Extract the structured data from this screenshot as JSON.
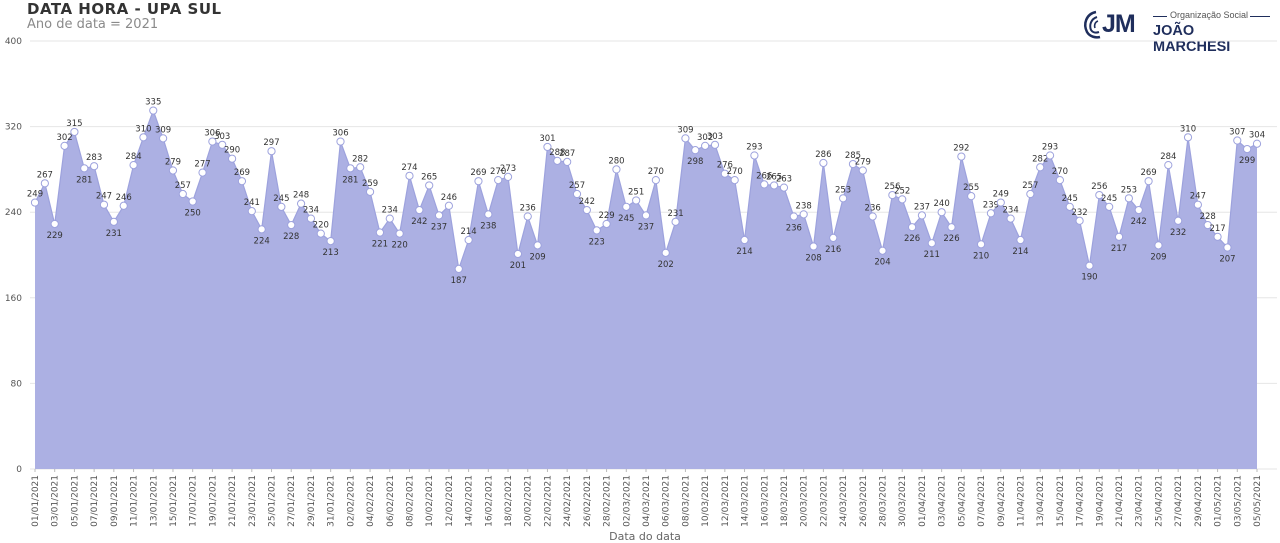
{
  "title": "DATA HORA - UPA SUL",
  "subtitle": "Ano de data = 2021",
  "logo": {
    "tagline": "Organização Social",
    "initials": "JM",
    "name": "JOÃO MARCHESI"
  },
  "colors": {
    "area": "#acb0e3",
    "line": "#9da2dd",
    "grid": "#e6e6e6",
    "marker_stroke": "#9da2dd",
    "text": "#555555"
  },
  "chart_data": {
    "type": "area",
    "xlabel": "Data do data",
    "ylabel": "",
    "ylim": [
      0,
      400
    ],
    "yticks": [
      0,
      80,
      160,
      240,
      320,
      400
    ],
    "start_date": "01/01/2021",
    "end_date": "05/05/2021",
    "x_tick_labels": [
      "01/01/2021",
      "03/01/2021",
      "05/01/2021",
      "07/01/2021",
      "09/01/2021",
      "11/01/2021",
      "13/01/2021",
      "15/01/2021",
      "17/01/2021",
      "19/01/2021",
      "21/01/2021",
      "23/01/2021",
      "25/01/2021",
      "27/01/2021",
      "29/01/2021",
      "31/01/2021",
      "02/02/2021",
      "04/02/2021",
      "06/02/2021",
      "08/02/2021",
      "10/02/2021",
      "12/02/2021",
      "14/02/2021",
      "16/02/2021",
      "18/02/2021",
      "20/02/2021",
      "22/02/2021",
      "24/02/2021",
      "26/02/2021",
      "28/02/2021",
      "02/03/2021",
      "04/03/2021",
      "06/03/2021",
      "08/03/2021",
      "10/03/2021",
      "12/03/2021",
      "14/03/2021",
      "16/03/2021",
      "18/03/2021",
      "20/03/2021",
      "22/03/2021",
      "24/03/2021",
      "26/03/2021",
      "28/03/2021",
      "30/03/2021",
      "01/04/2021",
      "03/04/2021",
      "05/04/2021",
      "07/04/2021",
      "09/04/2021",
      "11/04/2021",
      "13/04/2021",
      "15/04/2021",
      "17/04/2021",
      "19/04/2021",
      "21/04/2021",
      "23/04/2021",
      "25/04/2021",
      "27/04/2021",
      "29/04/2021",
      "01/05/2021",
      "03/05/2021",
      "05/05/2021"
    ],
    "values": [
      249,
      267,
      229,
      302,
      315,
      281,
      283,
      247,
      231,
      246,
      284,
      310,
      335,
      309,
      279,
      257,
      250,
      277,
      306,
      303,
      290,
      269,
      241,
      224,
      297,
      245,
      228,
      248,
      234,
      220,
      213,
      306,
      281,
      282,
      259,
      221,
      234,
      220,
      274,
      242,
      265,
      237,
      246,
      187,
      214,
      269,
      238,
      270,
      273,
      201,
      236,
      209,
      301,
      288,
      287,
      257,
      242,
      223,
      229,
      280,
      245,
      251,
      237,
      270,
      202,
      231,
      309,
      298,
      302,
      303,
      276,
      270,
      214,
      293,
      266,
      265,
      263,
      236,
      238,
      208,
      286,
      216,
      253,
      285,
      279,
      236,
      204,
      256,
      252,
      226,
      237,
      211,
      240,
      226,
      292,
      255,
      210,
      239,
      249,
      234,
      214,
      257,
      282,
      293,
      270,
      245,
      232,
      190,
      256,
      245,
      217,
      253,
      242,
      269,
      209,
      284,
      232,
      310,
      247,
      228,
      217,
      207,
      307,
      299,
      304
    ]
  }
}
